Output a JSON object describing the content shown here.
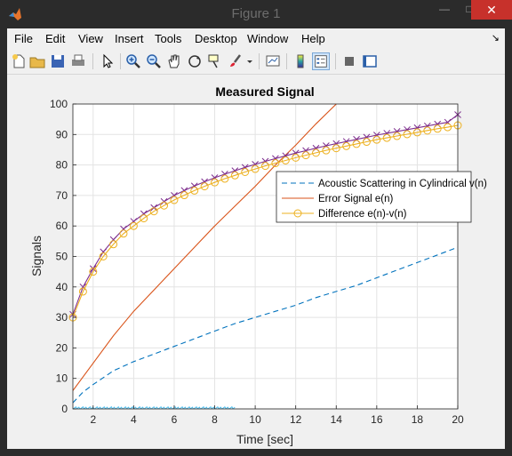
{
  "window": {
    "title": "Figure 1"
  },
  "menu": [
    "File",
    "Edit",
    "View",
    "Insert",
    "Tools",
    "Desktop",
    "Window",
    "Help"
  ],
  "toolbar_icons": [
    "new-file-icon",
    "open-folder-icon",
    "save-icon",
    "print-icon",
    "pointer-icon",
    "zoom-in-icon",
    "zoom-out-icon",
    "pan-icon",
    "rotate-3d-icon",
    "data-cursor-icon",
    "brush-icon",
    "brush-dropdown-icon",
    "link-plot-icon",
    "colorbar-icon",
    "legend-icon",
    "hide-plot-tools-icon",
    "show-plot-tools-icon"
  ],
  "chart_data": {
    "type": "line",
    "title": "Measured Signal",
    "xlabel": "Time [sec]",
    "ylabel": "Signals",
    "xlim": [
      1,
      20
    ],
    "ylim": [
      0,
      100
    ],
    "xticks": [
      2,
      4,
      6,
      8,
      10,
      12,
      14,
      16,
      18,
      20
    ],
    "yticks": [
      0,
      10,
      20,
      30,
      40,
      50,
      60,
      70,
      80,
      90,
      100
    ],
    "grid": true,
    "legend_position": "upper-right",
    "series": [
      {
        "name": "Acoustic Scattering in Cylindrical v(n)",
        "color": "#0072BD",
        "style": "dashed",
        "x": [
          1,
          1.5,
          2,
          3,
          4,
          5,
          6,
          7,
          8,
          9,
          10,
          11,
          12,
          13,
          14,
          15,
          16,
          17,
          18,
          19,
          20
        ],
        "y": [
          2,
          5.5,
          8,
          12.5,
          15.5,
          18,
          20.5,
          23,
          25.5,
          28,
          30,
          32,
          34,
          36.5,
          38.5,
          40.5,
          43,
          45.5,
          48,
          50.5,
          53
        ]
      },
      {
        "name": "Error Signal e(n)",
        "color": "#D95319",
        "style": "solid",
        "x": [
          1,
          2,
          3,
          4,
          5,
          6,
          7,
          8,
          9,
          10,
          11,
          12,
          13,
          14
        ],
        "y": [
          6,
          15,
          24,
          32,
          39,
          46,
          53,
          60,
          66.5,
          73,
          80,
          86.5,
          93.5,
          100
        ]
      },
      {
        "name": "Difference e(n)-v(n)",
        "color": "#EDB120",
        "style": "solid-circle",
        "x": [
          1,
          1.5,
          2,
          2.5,
          3,
          3.5,
          4,
          4.5,
          5,
          5.5,
          6,
          6.5,
          7,
          7.5,
          8,
          8.5,
          9,
          9.5,
          10,
          10.5,
          11,
          11.5,
          12,
          12.5,
          13,
          13.5,
          14,
          14.5,
          15,
          15.5,
          16,
          16.5,
          17,
          17.5,
          18,
          18.5,
          19,
          19.5,
          20
        ],
        "y": [
          30,
          38.5,
          45,
          50,
          54,
          57.5,
          60,
          62.5,
          64.8,
          66.7,
          68.5,
          70.1,
          71.6,
          73,
          74.3,
          75.5,
          76.6,
          77.7,
          78.7,
          79.7,
          80.6,
          81.5,
          82.4,
          83.2,
          84,
          84.8,
          85.5,
          86.2,
          86.9,
          87.6,
          88.3,
          88.9,
          89.5,
          90.1,
          90.7,
          91.3,
          91.9,
          92.4,
          93
        ]
      }
    ],
    "extra_series": [
      {
        "color": "#7E2F8E",
        "style": "x-marker",
        "x": [
          1,
          1.5,
          2,
          2.5,
          3,
          3.5,
          4,
          4.5,
          5,
          5.5,
          6,
          6.5,
          7,
          7.5,
          8,
          8.5,
          9,
          9.5,
          10,
          10.5,
          11,
          11.5,
          12,
          12.5,
          13,
          13.5,
          14,
          14.5,
          15,
          15.5,
          16,
          16.5,
          17,
          17.5,
          18,
          18.5,
          19,
          19.5,
          20
        ],
        "y": [
          31,
          40,
          46,
          51.5,
          55.5,
          59,
          61.5,
          64,
          66,
          68,
          70,
          71.6,
          73.1,
          74.5,
          75.8,
          77,
          78.1,
          79.2,
          80.2,
          81.2,
          82.1,
          83,
          83.9,
          84.7,
          85.5,
          86.3,
          87,
          87.7,
          88.4,
          89.1,
          89.8,
          90.4,
          91,
          91.6,
          92.2,
          92.8,
          93.4,
          94,
          96.5
        ]
      },
      {
        "color": "#4DBEEE",
        "style": "noise",
        "x": [
          1,
          9
        ],
        "y": [
          0.3,
          0.3
        ]
      }
    ]
  }
}
